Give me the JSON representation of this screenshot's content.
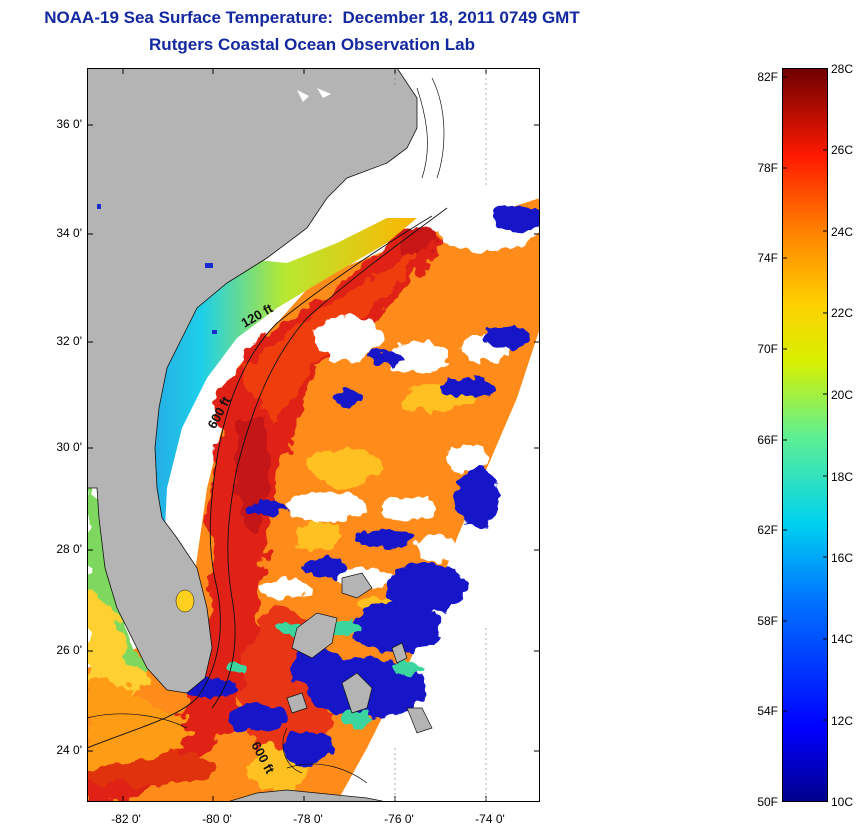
{
  "header": {
    "title_line1": "NOAA-19 Sea Surface Temperature:  December 18, 2011 0749 GMT",
    "title_line2": "Rutgers Coastal Ocean Observation Lab"
  },
  "map": {
    "lat_ticks": [
      {
        "value": 36,
        "label": "36 0'"
      },
      {
        "value": 34,
        "label": "34 0'"
      },
      {
        "value": 32,
        "label": "32 0'"
      },
      {
        "value": 30,
        "label": "30 0'"
      },
      {
        "value": 28,
        "label": "28 0'"
      },
      {
        "value": 26,
        "label": "26 0'"
      },
      {
        "value": 24,
        "label": "24 0'"
      }
    ],
    "lon_ticks": [
      {
        "value": -82,
        "label": "-82 0'"
      },
      {
        "value": -80,
        "label": "-80 0'"
      },
      {
        "value": -78,
        "label": "-78 0'"
      },
      {
        "value": -76,
        "label": "-76 0'"
      },
      {
        "value": -74,
        "label": "-74 0'"
      }
    ],
    "lat_range": [
      23,
      37.2
    ],
    "lon_range": [
      -83,
      -73
    ],
    "contour_labels": [
      "120 ft",
      "600 ft",
      "600 ft"
    ],
    "land_color": "#b4b4b4"
  },
  "colorbar": {
    "fahrenheit_labels": [
      "82F",
      "78F",
      "74F",
      "70F",
      "66F",
      "62F",
      "58F",
      "54F",
      "50F"
    ],
    "celsius_labels": [
      "28C",
      "26C",
      "24C",
      "22C",
      "20C",
      "18C",
      "16C",
      "14C",
      "12C",
      "10C"
    ],
    "range_c": [
      10,
      28
    ]
  }
}
